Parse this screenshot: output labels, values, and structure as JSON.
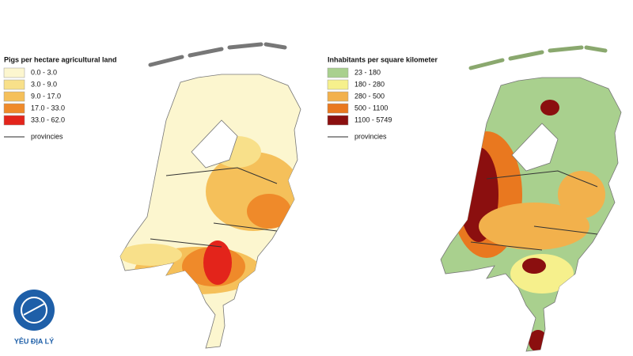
{
  "left_map": {
    "title": "Pigs per hectare agricultural land",
    "legend": [
      {
        "label": "0.0 - 3.0",
        "color": "#fcf6cf"
      },
      {
        "label": "3.0 - 9.0",
        "color": "#f8e08a"
      },
      {
        "label": "9.0 - 17.0",
        "color": "#f5c05a"
      },
      {
        "label": "17.0 - 33.0",
        "color": "#ef8a2a"
      },
      {
        "label": "33.0 - 62.0",
        "color": "#e3241b"
      }
    ],
    "boundary_label": "provincies"
  },
  "right_map": {
    "title": "Inhabitants per square kilometer",
    "legend": [
      {
        "label": "23 - 180",
        "color": "#a9d08e"
      },
      {
        "label": "180 - 280",
        "color": "#f6f08c"
      },
      {
        "label": "280 - 500",
        "color": "#f2b14c"
      },
      {
        "label": "500 - 1100",
        "color": "#e9781f"
      },
      {
        "label": "1100 - 5749",
        "color": "#8b0f0f"
      }
    ],
    "boundary_label": "provincies"
  },
  "logo": {
    "text": "YÊU ĐỊA LÝ"
  }
}
